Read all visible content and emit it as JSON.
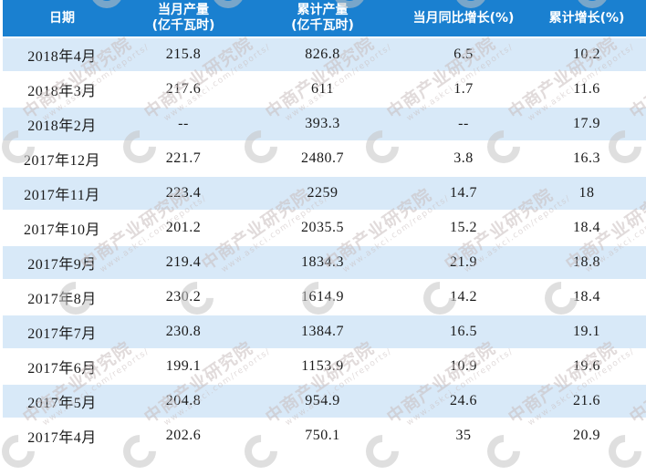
{
  "colors": {
    "header_bg": "#1a80d0",
    "header_text": "#ffffff",
    "row_alt_bg": "#d8e9f8",
    "row_bg": "#ffffff",
    "cell_text": "#1a1a1a",
    "watermark_text": "#c9bebe",
    "watermark_shape": "#c6c6c6"
  },
  "table": {
    "columns": [
      {
        "label": "日期",
        "sublabel": ""
      },
      {
        "label": "当月产量",
        "sublabel": "(亿千瓦时)"
      },
      {
        "label": "累计产量",
        "sublabel": "(亿千瓦时)"
      },
      {
        "label": "当月同比增长(%)",
        "sublabel": ""
      },
      {
        "label": "累计增长(%)",
        "sublabel": ""
      }
    ],
    "rows": [
      [
        "2018年4月",
        "215.8",
        "826.8",
        "6.5",
        "10.2"
      ],
      [
        "2018年3月",
        "217.6",
        "611",
        "1.7",
        "11.6"
      ],
      [
        "2018年2月",
        "--",
        "393.3",
        "--",
        "17.9"
      ],
      [
        "2017年12月",
        "221.7",
        "2480.7",
        "3.8",
        "16.3"
      ],
      [
        "2017年11月",
        "223.4",
        "2259",
        "14.7",
        "18"
      ],
      [
        "2017年10月",
        "201.2",
        "2035.5",
        "15.2",
        "18.4"
      ],
      [
        "2017年9月",
        "219.4",
        "1834.3",
        "21.9",
        "18.8"
      ],
      [
        "2017年8月",
        "230.2",
        "1614.9",
        "14.2",
        "18.4"
      ],
      [
        "2017年7月",
        "230.8",
        "1384.7",
        "16.5",
        "19.1"
      ],
      [
        "2017年6月",
        "199.1",
        "1153.9",
        "10.9",
        "19.6"
      ],
      [
        "2017年5月",
        "204.8",
        "954.9",
        "24.6",
        "21.6"
      ],
      [
        "2017年4月",
        "202.6",
        "750.1",
        "35",
        "20.9"
      ]
    ]
  },
  "watermark": {
    "brand": "中商产业研究院",
    "url": "www.askci.com/reports/"
  },
  "chart_data": {
    "type": "table",
    "columns": [
      "日期",
      "当月产量(亿千瓦时)",
      "累计产量(亿千瓦时)",
      "当月同比增长(%)",
      "累计增长(%)"
    ],
    "rows": [
      [
        "2018年4月",
        215.8,
        826.8,
        6.5,
        10.2
      ],
      [
        "2018年3月",
        217.6,
        611,
        1.7,
        11.6
      ],
      [
        "2018年2月",
        null,
        393.3,
        null,
        17.9
      ],
      [
        "2017年12月",
        221.7,
        2480.7,
        3.8,
        16.3
      ],
      [
        "2017年11月",
        223.4,
        2259,
        14.7,
        18
      ],
      [
        "2017年10月",
        201.2,
        2035.5,
        15.2,
        18.4
      ],
      [
        "2017年9月",
        219.4,
        1834.3,
        21.9,
        18.8
      ],
      [
        "2017年8月",
        230.2,
        1614.9,
        14.2,
        18.4
      ],
      [
        "2017年7月",
        230.8,
        1384.7,
        16.5,
        19.1
      ],
      [
        "2017年6月",
        199.1,
        1153.9,
        10.9,
        19.6
      ],
      [
        "2017年5月",
        204.8,
        954.9,
        24.6,
        21.6
      ],
      [
        "2017年4月",
        202.6,
        750.1,
        35,
        20.9
      ]
    ],
    "notes": "Monthly electric power production statistics table; '--' means no data for that month"
  }
}
